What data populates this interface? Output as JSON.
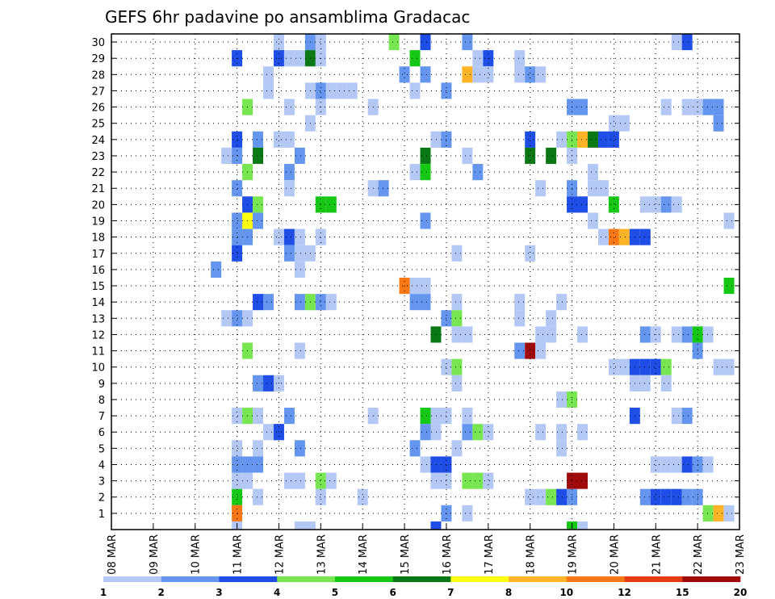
{
  "chart_data": {
    "type": "heatmap",
    "title": "GEFS 6hr padavine po ansamblima Gradacac",
    "xlabel": "",
    "ylabel": "",
    "x_tick_labels": [
      "08 MAR",
      "09 MAR",
      "10 MAR",
      "11 MAR",
      "12 MAR",
      "13 MAR",
      "14 MAR",
      "15 MAR",
      "16 MAR",
      "17 MAR",
      "18 MAR",
      "19 MAR",
      "20 MAR",
      "21 MAR",
      "22 MAR",
      "23 MAR"
    ],
    "xlim_days": [
      8,
      23
    ],
    "x_step_days": 0.25,
    "y_tick_labels": [
      1,
      2,
      3,
      4,
      5,
      6,
      7,
      8,
      9,
      10,
      11,
      12,
      13,
      14,
      15,
      16,
      17,
      18,
      19,
      20,
      21,
      22,
      23,
      24,
      25,
      26,
      27,
      28,
      29,
      30
    ],
    "ylim": [
      0,
      30
    ],
    "grid": true,
    "legend": {
      "placement": "bottom",
      "labels": [
        "1",
        "2",
        "3",
        "4",
        "5",
        "6",
        "7",
        "8",
        "10",
        "12",
        "15",
        "20"
      ],
      "colors": [
        "#b4c8f5",
        "#6496f0",
        "#1e4ee6",
        "#78e650",
        "#14c814",
        "#0a7814",
        "#ffff14",
        "#ffb428",
        "#fa7814",
        "#e63c14",
        "#a00a0a"
      ]
    },
    "color_levels": {
      "1": "#b4c8f5",
      "2": "#6496f0",
      "3": "#1e4ee6",
      "4": "#78e650",
      "5": "#14c814",
      "6": "#0a7814",
      "7": "#ffff14",
      "8": "#ffb428",
      "10": "#fa7814",
      "15": "#a00a0a"
    },
    "cells": [
      {
        "m": 30,
        "day": 12.0,
        "v": 1
      },
      {
        "m": 30,
        "day": 12.75,
        "v": 2
      },
      {
        "m": 30,
        "day": 13.0,
        "v": 1
      },
      {
        "m": 30,
        "day": 14.75,
        "v": 4
      },
      {
        "m": 30,
        "day": 15.5,
        "v": 3
      },
      {
        "m": 30,
        "day": 16.5,
        "v": 2
      },
      {
        "m": 30,
        "day": 21.5,
        "v": 1
      },
      {
        "m": 30,
        "day": 21.75,
        "v": 3
      },
      {
        "m": 29,
        "day": 11.0,
        "v": 3
      },
      {
        "m": 29,
        "day": 12.0,
        "v": 3
      },
      {
        "m": 29,
        "day": 12.25,
        "v": 1
      },
      {
        "m": 29,
        "day": 12.5,
        "v": 1
      },
      {
        "m": 29,
        "day": 12.75,
        "v": 6
      },
      {
        "m": 29,
        "day": 13.0,
        "v": 1
      },
      {
        "m": 29,
        "day": 15.25,
        "v": 5
      },
      {
        "m": 29,
        "day": 16.75,
        "v": 1
      },
      {
        "m": 29,
        "day": 17.0,
        "v": 3
      },
      {
        "m": 29,
        "day": 17.75,
        "v": 1
      },
      {
        "m": 28,
        "day": 11.75,
        "v": 1
      },
      {
        "m": 28,
        "day": 15.0,
        "v": 2
      },
      {
        "m": 28,
        "day": 15.5,
        "v": 2
      },
      {
        "m": 28,
        "day": 16.5,
        "v": 8
      },
      {
        "m": 28,
        "day": 16.75,
        "v": 1
      },
      {
        "m": 28,
        "day": 17.0,
        "v": 1
      },
      {
        "m": 28,
        "day": 17.75,
        "v": 1
      },
      {
        "m": 28,
        "day": 18.0,
        "v": 2
      },
      {
        "m": 28,
        "day": 18.25,
        "v": 1
      },
      {
        "m": 27,
        "day": 11.75,
        "v": 1
      },
      {
        "m": 27,
        "day": 12.75,
        "v": 1
      },
      {
        "m": 27,
        "day": 13.0,
        "v": 2
      },
      {
        "m": 27,
        "day": 13.25,
        "v": 1
      },
      {
        "m": 27,
        "day": 13.5,
        "v": 1
      },
      {
        "m": 27,
        "day": 13.75,
        "v": 1
      },
      {
        "m": 27,
        "day": 15.25,
        "v": 1
      },
      {
        "m": 27,
        "day": 16.0,
        "v": 2
      },
      {
        "m": 26,
        "day": 11.25,
        "v": 4
      },
      {
        "m": 26,
        "day": 12.25,
        "v": 1
      },
      {
        "m": 26,
        "day": 13.0,
        "v": 1
      },
      {
        "m": 26,
        "day": 14.25,
        "v": 1
      },
      {
        "m": 26,
        "day": 19.0,
        "v": 2
      },
      {
        "m": 26,
        "day": 19.25,
        "v": 2
      },
      {
        "m": 26,
        "day": 21.25,
        "v": 1
      },
      {
        "m": 26,
        "day": 21.75,
        "v": 1
      },
      {
        "m": 26,
        "day": 22.0,
        "v": 1
      },
      {
        "m": 26,
        "day": 22.25,
        "v": 2
      },
      {
        "m": 26,
        "day": 22.5,
        "v": 2
      },
      {
        "m": 25,
        "day": 12.75,
        "v": 1
      },
      {
        "m": 25,
        "day": 20.0,
        "v": 1
      },
      {
        "m": 25,
        "day": 20.25,
        "v": 1
      },
      {
        "m": 25,
        "day": 22.5,
        "v": 2
      },
      {
        "m": 24,
        "day": 11.0,
        "v": 3
      },
      {
        "m": 24,
        "day": 11.5,
        "v": 2
      },
      {
        "m": 24,
        "day": 12.0,
        "v": 1
      },
      {
        "m": 24,
        "day": 12.25,
        "v": 1
      },
      {
        "m": 24,
        "day": 15.75,
        "v": 1
      },
      {
        "m": 24,
        "day": 16.0,
        "v": 2
      },
      {
        "m": 24,
        "day": 18.0,
        "v": 3
      },
      {
        "m": 24,
        "day": 18.75,
        "v": 1
      },
      {
        "m": 24,
        "day": 19.0,
        "v": 4
      },
      {
        "m": 24,
        "day": 19.25,
        "v": 8
      },
      {
        "m": 24,
        "day": 19.5,
        "v": 6
      },
      {
        "m": 24,
        "day": 19.75,
        "v": 3
      },
      {
        "m": 24,
        "day": 20.0,
        "v": 3
      },
      {
        "m": 23,
        "day": 10.75,
        "v": 1
      },
      {
        "m": 23,
        "day": 11.0,
        "v": 2
      },
      {
        "m": 23,
        "day": 11.5,
        "v": 6
      },
      {
        "m": 23,
        "day": 12.5,
        "v": 2
      },
      {
        "m": 23,
        "day": 15.5,
        "v": 6
      },
      {
        "m": 23,
        "day": 16.5,
        "v": 1
      },
      {
        "m": 23,
        "day": 18.0,
        "v": 6
      },
      {
        "m": 23,
        "day": 18.5,
        "v": 6
      },
      {
        "m": 23,
        "day": 19.0,
        "v": 1
      },
      {
        "m": 22,
        "day": 11.25,
        "v": 4
      },
      {
        "m": 22,
        "day": 12.25,
        "v": 2
      },
      {
        "m": 22,
        "day": 15.25,
        "v": 1
      },
      {
        "m": 22,
        "day": 15.5,
        "v": 5
      },
      {
        "m": 22,
        "day": 16.75,
        "v": 2
      },
      {
        "m": 22,
        "day": 19.5,
        "v": 1
      },
      {
        "m": 21,
        "day": 11.0,
        "v": 2
      },
      {
        "m": 21,
        "day": 12.25,
        "v": 1
      },
      {
        "m": 21,
        "day": 14.25,
        "v": 1
      },
      {
        "m": 21,
        "day": 14.5,
        "v": 2
      },
      {
        "m": 21,
        "day": 18.25,
        "v": 1
      },
      {
        "m": 21,
        "day": 19.0,
        "v": 2
      },
      {
        "m": 21,
        "day": 19.5,
        "v": 1
      },
      {
        "m": 21,
        "day": 19.75,
        "v": 1
      },
      {
        "m": 20,
        "day": 11.25,
        "v": 3
      },
      {
        "m": 20,
        "day": 11.5,
        "v": 4
      },
      {
        "m": 20,
        "day": 13.0,
        "v": 5
      },
      {
        "m": 20,
        "day": 13.25,
        "v": 5
      },
      {
        "m": 20,
        "day": 19.0,
        "v": 3
      },
      {
        "m": 20,
        "day": 19.25,
        "v": 3
      },
      {
        "m": 20,
        "day": 20.0,
        "v": 5
      },
      {
        "m": 20,
        "day": 20.75,
        "v": 1
      },
      {
        "m": 20,
        "day": 21.0,
        "v": 1
      },
      {
        "m": 20,
        "day": 21.25,
        "v": 2
      },
      {
        "m": 20,
        "day": 21.5,
        "v": 1
      },
      {
        "m": 19,
        "day": 11.0,
        "v": 2
      },
      {
        "m": 19,
        "day": 11.25,
        "v": 7
      },
      {
        "m": 19,
        "day": 11.5,
        "v": 2
      },
      {
        "m": 19,
        "day": 15.5,
        "v": 2
      },
      {
        "m": 19,
        "day": 19.5,
        "v": 1
      },
      {
        "m": 19,
        "day": 22.75,
        "v": 1
      },
      {
        "m": 18,
        "day": 11.0,
        "v": 2
      },
      {
        "m": 18,
        "day": 11.25,
        "v": 2
      },
      {
        "m": 18,
        "day": 12.0,
        "v": 1
      },
      {
        "m": 18,
        "day": 12.25,
        "v": 3
      },
      {
        "m": 18,
        "day": 12.5,
        "v": 1
      },
      {
        "m": 18,
        "day": 13.0,
        "v": 1
      },
      {
        "m": 18,
        "day": 19.75,
        "v": 1
      },
      {
        "m": 18,
        "day": 20.0,
        "v": 10
      },
      {
        "m": 18,
        "day": 20.25,
        "v": 8
      },
      {
        "m": 18,
        "day": 20.5,
        "v": 3
      },
      {
        "m": 18,
        "day": 20.75,
        "v": 3
      },
      {
        "m": 17,
        "day": 11.0,
        "v": 3
      },
      {
        "m": 17,
        "day": 12.25,
        "v": 2
      },
      {
        "m": 17,
        "day": 12.5,
        "v": 1
      },
      {
        "m": 17,
        "day": 12.75,
        "v": 1
      },
      {
        "m": 17,
        "day": 16.25,
        "v": 1
      },
      {
        "m": 17,
        "day": 18.0,
        "v": 1
      },
      {
        "m": 16,
        "day": 10.5,
        "v": 2
      },
      {
        "m": 16,
        "day": 12.5,
        "v": 1
      },
      {
        "m": 15,
        "day": 15.0,
        "v": 10
      },
      {
        "m": 15,
        "day": 15.25,
        "v": 1
      },
      {
        "m": 15,
        "day": 15.5,
        "v": 1
      },
      {
        "m": 15,
        "day": 22.75,
        "v": 5
      },
      {
        "m": 14,
        "day": 11.5,
        "v": 3
      },
      {
        "m": 14,
        "day": 11.75,
        "v": 2
      },
      {
        "m": 14,
        "day": 12.5,
        "v": 2
      },
      {
        "m": 14,
        "day": 12.75,
        "v": 4
      },
      {
        "m": 14,
        "day": 13.0,
        "v": 2
      },
      {
        "m": 14,
        "day": 13.25,
        "v": 1
      },
      {
        "m": 14,
        "day": 15.25,
        "v": 2
      },
      {
        "m": 14,
        "day": 15.5,
        "v": 2
      },
      {
        "m": 14,
        "day": 16.25,
        "v": 1
      },
      {
        "m": 14,
        "day": 17.75,
        "v": 1
      },
      {
        "m": 14,
        "day": 18.75,
        "v": 1
      },
      {
        "m": 13,
        "day": 10.75,
        "v": 1
      },
      {
        "m": 13,
        "day": 11.0,
        "v": 2
      },
      {
        "m": 13,
        "day": 11.25,
        "v": 1
      },
      {
        "m": 13,
        "day": 16.0,
        "v": 2
      },
      {
        "m": 13,
        "day": 16.25,
        "v": 4
      },
      {
        "m": 13,
        "day": 17.75,
        "v": 1
      },
      {
        "m": 13,
        "day": 18.5,
        "v": 1
      },
      {
        "m": 12,
        "day": 15.75,
        "v": 6
      },
      {
        "m": 12,
        "day": 16.25,
        "v": 1
      },
      {
        "m": 12,
        "day": 16.5,
        "v": 1
      },
      {
        "m": 12,
        "day": 18.25,
        "v": 1
      },
      {
        "m": 12,
        "day": 18.5,
        "v": 1
      },
      {
        "m": 12,
        "day": 19.25,
        "v": 1
      },
      {
        "m": 12,
        "day": 20.75,
        "v": 2
      },
      {
        "m": 12,
        "day": 21.0,
        "v": 1
      },
      {
        "m": 12,
        "day": 21.5,
        "v": 1
      },
      {
        "m": 12,
        "day": 21.75,
        "v": 2
      },
      {
        "m": 12,
        "day": 22.0,
        "v": 5
      },
      {
        "m": 12,
        "day": 22.25,
        "v": 1
      },
      {
        "m": 11,
        "day": 11.25,
        "v": 4
      },
      {
        "m": 11,
        "day": 12.5,
        "v": 1
      },
      {
        "m": 11,
        "day": 17.75,
        "v": 2
      },
      {
        "m": 11,
        "day": 18.0,
        "v": 15
      },
      {
        "m": 11,
        "day": 18.25,
        "v": 1
      },
      {
        "m": 11,
        "day": 22.0,
        "v": 2
      },
      {
        "m": 10,
        "day": 16.0,
        "v": 1
      },
      {
        "m": 10,
        "day": 16.25,
        "v": 4
      },
      {
        "m": 10,
        "day": 20.0,
        "v": 1
      },
      {
        "m": 10,
        "day": 20.25,
        "v": 1
      },
      {
        "m": 10,
        "day": 20.5,
        "v": 3
      },
      {
        "m": 10,
        "day": 20.75,
        "v": 3
      },
      {
        "m": 10,
        "day": 21.0,
        "v": 3
      },
      {
        "m": 10,
        "day": 21.25,
        "v": 4
      },
      {
        "m": 10,
        "day": 22.5,
        "v": 1
      },
      {
        "m": 10,
        "day": 22.75,
        "v": 1
      },
      {
        "m": 9,
        "day": 11.5,
        "v": 2
      },
      {
        "m": 9,
        "day": 11.75,
        "v": 3
      },
      {
        "m": 9,
        "day": 12.0,
        "v": 1
      },
      {
        "m": 9,
        "day": 16.25,
        "v": 1
      },
      {
        "m": 9,
        "day": 20.5,
        "v": 1
      },
      {
        "m": 9,
        "day": 20.75,
        "v": 1
      },
      {
        "m": 9,
        "day": 21.25,
        "v": 1
      },
      {
        "m": 8,
        "day": 18.75,
        "v": 1
      },
      {
        "m": 8,
        "day": 19.0,
        "v": 4
      },
      {
        "m": 7,
        "day": 11.0,
        "v": 1
      },
      {
        "m": 7,
        "day": 11.25,
        "v": 4
      },
      {
        "m": 7,
        "day": 11.5,
        "v": 1
      },
      {
        "m": 7,
        "day": 12.25,
        "v": 2
      },
      {
        "m": 7,
        "day": 14.25,
        "v": 1
      },
      {
        "m": 7,
        "day": 15.5,
        "v": 5
      },
      {
        "m": 7,
        "day": 15.75,
        "v": 1
      },
      {
        "m": 7,
        "day": 16.0,
        "v": 1
      },
      {
        "m": 7,
        "day": 16.5,
        "v": 1
      },
      {
        "m": 7,
        "day": 20.5,
        "v": 3
      },
      {
        "m": 7,
        "day": 21.5,
        "v": 1
      },
      {
        "m": 7,
        "day": 21.75,
        "v": 2
      },
      {
        "m": 6,
        "day": 11.75,
        "v": 1
      },
      {
        "m": 6,
        "day": 12.0,
        "v": 3
      },
      {
        "m": 6,
        "day": 15.5,
        "v": 2
      },
      {
        "m": 6,
        "day": 15.75,
        "v": 1
      },
      {
        "m": 6,
        "day": 16.5,
        "v": 2
      },
      {
        "m": 6,
        "day": 16.75,
        "v": 4
      },
      {
        "m": 6,
        "day": 17.0,
        "v": 1
      },
      {
        "m": 6,
        "day": 18.25,
        "v": 1
      },
      {
        "m": 6,
        "day": 18.75,
        "v": 1
      },
      {
        "m": 6,
        "day": 19.25,
        "v": 1
      },
      {
        "m": 5,
        "day": 11.0,
        "v": 1
      },
      {
        "m": 5,
        "day": 11.5,
        "v": 1
      },
      {
        "m": 5,
        "day": 12.5,
        "v": 2
      },
      {
        "m": 5,
        "day": 15.25,
        "v": 2
      },
      {
        "m": 5,
        "day": 16.25,
        "v": 1
      },
      {
        "m": 5,
        "day": 18.75,
        "v": 1
      },
      {
        "m": 4,
        "day": 11.0,
        "v": 2
      },
      {
        "m": 4,
        "day": 11.25,
        "v": 2
      },
      {
        "m": 4,
        "day": 11.5,
        "v": 2
      },
      {
        "m": 4,
        "day": 15.5,
        "v": 1
      },
      {
        "m": 4,
        "day": 15.75,
        "v": 3
      },
      {
        "m": 4,
        "day": 16.0,
        "v": 3
      },
      {
        "m": 4,
        "day": 21.0,
        "v": 1
      },
      {
        "m": 4,
        "day": 21.25,
        "v": 1
      },
      {
        "m": 4,
        "day": 21.5,
        "v": 1
      },
      {
        "m": 4,
        "day": 21.75,
        "v": 3
      },
      {
        "m": 4,
        "day": 22.0,
        "v": 2
      },
      {
        "m": 4,
        "day": 22.25,
        "v": 1
      },
      {
        "m": 3,
        "day": 11.0,
        "v": 1
      },
      {
        "m": 3,
        "day": 11.25,
        "v": 1
      },
      {
        "m": 3,
        "day": 12.25,
        "v": 1
      },
      {
        "m": 3,
        "day": 12.5,
        "v": 1
      },
      {
        "m": 3,
        "day": 13.0,
        "v": 4
      },
      {
        "m": 3,
        "day": 13.25,
        "v": 1
      },
      {
        "m": 3,
        "day": 15.75,
        "v": 1
      },
      {
        "m": 3,
        "day": 16.0,
        "v": 1
      },
      {
        "m": 3,
        "day": 16.5,
        "v": 4
      },
      {
        "m": 3,
        "day": 16.75,
        "v": 4
      },
      {
        "m": 3,
        "day": 17.0,
        "v": 1
      },
      {
        "m": 3,
        "day": 19.0,
        "v": 15
      },
      {
        "m": 3,
        "day": 19.25,
        "v": 15
      },
      {
        "m": 2,
        "day": 11.0,
        "v": 5
      },
      {
        "m": 2,
        "day": 11.5,
        "v": 1
      },
      {
        "m": 2,
        "day": 13.0,
        "v": 1
      },
      {
        "m": 2,
        "day": 14.0,
        "v": 1
      },
      {
        "m": 2,
        "day": 18.0,
        "v": 1
      },
      {
        "m": 2,
        "day": 18.25,
        "v": 1
      },
      {
        "m": 2,
        "day": 18.5,
        "v": 4
      },
      {
        "m": 2,
        "day": 18.75,
        "v": 3
      },
      {
        "m": 2,
        "day": 19.0,
        "v": 2
      },
      {
        "m": 2,
        "day": 20.75,
        "v": 2
      },
      {
        "m": 2,
        "day": 21.0,
        "v": 3
      },
      {
        "m": 2,
        "day": 21.25,
        "v": 3
      },
      {
        "m": 2,
        "day": 21.5,
        "v": 3
      },
      {
        "m": 2,
        "day": 21.75,
        "v": 2
      },
      {
        "m": 2,
        "day": 22.0,
        "v": 2
      },
      {
        "m": 1,
        "day": 11.0,
        "v": 10
      },
      {
        "m": 1,
        "day": 16.0,
        "v": 2
      },
      {
        "m": 1,
        "day": 16.5,
        "v": 1
      },
      {
        "m": 1,
        "day": 22.25,
        "v": 4
      },
      {
        "m": 1,
        "day": 22.5,
        "v": 8
      },
      {
        "m": 1,
        "day": 22.75,
        "v": 1
      },
      {
        "m": 0,
        "day": 11.0,
        "v": 1
      },
      {
        "m": 0,
        "day": 12.5,
        "v": 1
      },
      {
        "m": 0,
        "day": 12.75,
        "v": 1
      },
      {
        "m": 0,
        "day": 15.75,
        "v": 3
      },
      {
        "m": 0,
        "day": 19.0,
        "v": 5
      },
      {
        "m": 0,
        "day": 19.25,
        "v": 1
      }
    ]
  }
}
